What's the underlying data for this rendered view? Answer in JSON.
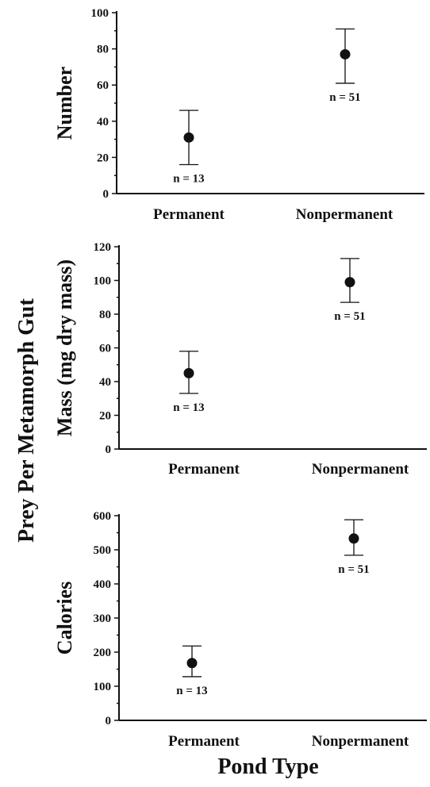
{
  "figure": {
    "shared_ylabel": "Prey Per Metamorph Gut",
    "xlabel": "Pond Type",
    "colors": {
      "ink": "#111111",
      "background": "#ffffff"
    }
  },
  "chart_data": [
    {
      "type": "scatter",
      "ylabel": "Number",
      "categories": [
        "Permanent",
        "Nonpermanent"
      ],
      "ylim": [
        0,
        100
      ],
      "yticks": [
        0,
        20,
        40,
        60,
        80,
        100
      ],
      "points": [
        {
          "category": "Permanent",
          "value": 31,
          "err_low": 16,
          "err_high": 46,
          "n_label": "n = 13"
        },
        {
          "category": "Nonpermanent",
          "value": 77,
          "err_low": 61,
          "err_high": 91,
          "n_label": "n = 51"
        }
      ]
    },
    {
      "type": "scatter",
      "ylabel": "Mass (mg dry mass)",
      "categories": [
        "Permanent",
        "Nonpermanent"
      ],
      "ylim": [
        0,
        120
      ],
      "yticks": [
        0,
        20,
        40,
        60,
        80,
        100,
        120
      ],
      "points": [
        {
          "category": "Permanent",
          "value": 45,
          "err_low": 33,
          "err_high": 58,
          "n_label": "n = 13"
        },
        {
          "category": "Nonpermanent",
          "value": 99,
          "err_low": 87,
          "err_high": 113,
          "n_label": "n = 51"
        }
      ]
    },
    {
      "type": "scatter",
      "ylabel": "Calories",
      "categories": [
        "Permanent",
        "Nonpermanent"
      ],
      "ylim": [
        0,
        600
      ],
      "yticks": [
        0,
        100,
        200,
        300,
        400,
        500,
        600
      ],
      "points": [
        {
          "category": "Permanent",
          "value": 168,
          "err_low": 128,
          "err_high": 218,
          "n_label": "n = 13"
        },
        {
          "category": "Nonpermanent",
          "value": 533,
          "err_low": 484,
          "err_high": 588,
          "n_label": "n = 51"
        }
      ]
    }
  ]
}
